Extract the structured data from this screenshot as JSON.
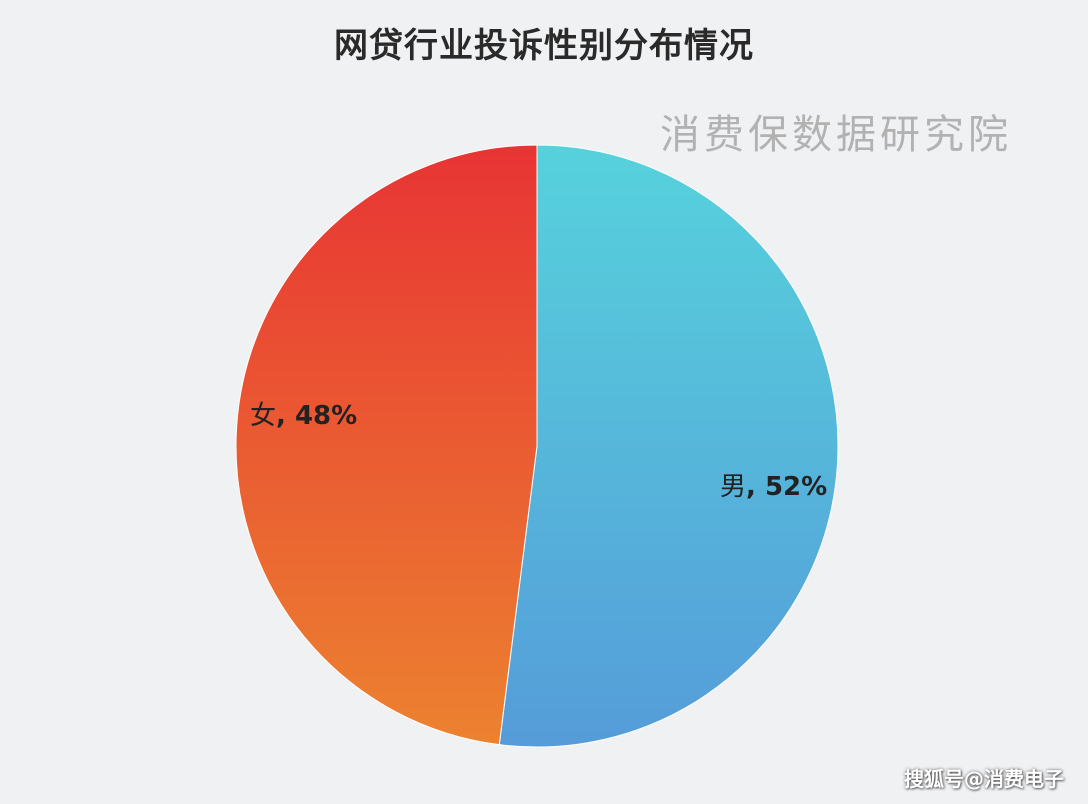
{
  "chart_data": {
    "type": "pie",
    "title": "网贷行业投诉性别分布情况",
    "slices": [
      {
        "label": "男",
        "value": 52,
        "display": "52%",
        "color_start": "#56d2dc",
        "color_end": "#559cd9"
      },
      {
        "label": "女",
        "value": 48,
        "display": "48%",
        "color_start": "#e83434",
        "color_end": "#ec8230"
      }
    ],
    "start_angle_deg": 0,
    "direction": "clockwise",
    "legend": "none",
    "data_labels": "inside"
  },
  "watermark": {
    "organization": "消费保数据研究院",
    "credit": "搜狐号@消费电子"
  },
  "colors": {
    "background": "#f0f1f3",
    "slice_border": "#ffffff"
  }
}
